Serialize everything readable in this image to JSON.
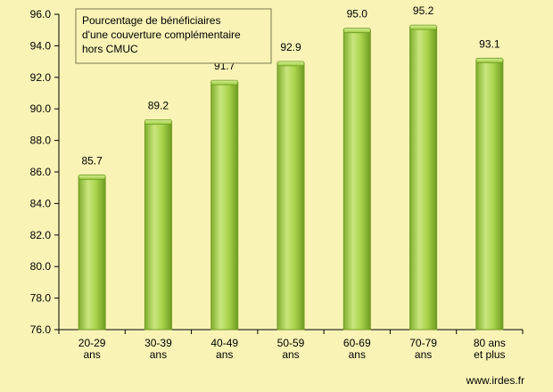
{
  "chart_data": {
    "type": "bar",
    "categories": [
      [
        "20-29",
        "ans"
      ],
      [
        "30-39",
        "ans"
      ],
      [
        "40-49",
        "ans"
      ],
      [
        "50-59",
        "ans"
      ],
      [
        "60-69",
        "ans"
      ],
      [
        "70-79",
        "ans"
      ],
      [
        "80 ans",
        "et plus"
      ]
    ],
    "values": [
      85.7,
      89.2,
      91.7,
      92.9,
      95.0,
      95.2,
      93.1
    ],
    "data_labels": [
      "85.7",
      "89.2",
      "91.7",
      "92.9",
      "95.0",
      "95.2",
      "93.1"
    ],
    "ylim": [
      76,
      96
    ],
    "yticks": [
      76,
      78,
      80,
      82,
      84,
      86,
      88,
      90,
      92,
      94,
      96
    ],
    "ytick_labels": [
      "76.0",
      "78.0",
      "80.0",
      "82.0",
      "84.0",
      "86.0",
      "88.0",
      "90.0",
      "92.0",
      "94.0",
      "96.0"
    ],
    "grid": false,
    "legend_box": {
      "lines": [
        "Pourcentage de bénéficiaires",
        "d'une couverture  complémentaire",
        "hors CMUC"
      ],
      "placement": "top-left"
    },
    "source": "www.irdes.fr",
    "colors": {
      "background": "#f9f3b6",
      "bar_fill": "#9acb3c",
      "bar_highlight": "#cfe98a",
      "bar_edge": "#6e9a22",
      "axis": "#000000"
    }
  }
}
